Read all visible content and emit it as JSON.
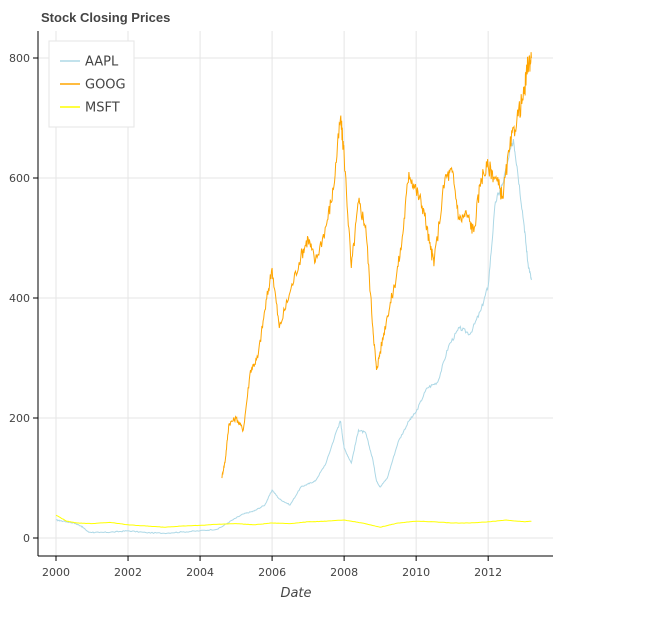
{
  "chart_data": {
    "type": "line",
    "title": "Stock Closing Prices",
    "xlabel": "Date",
    "ylabel": "",
    "x_unit": "year",
    "xlim": [
      1999.5,
      2013.8
    ],
    "ylim": [
      -30,
      845
    ],
    "x_ticks": [
      2000,
      2002,
      2004,
      2006,
      2008,
      2010,
      2012
    ],
    "y_ticks": [
      0,
      200,
      400,
      600,
      800
    ],
    "grid": true,
    "legend_position": "top-left",
    "series": [
      {
        "name": "AAPL",
        "color": "#ADD8E6",
        "x": [
          2000.0,
          2000.2,
          2000.5,
          2000.7,
          2000.9,
          2001.2,
          2001.6,
          2002.0,
          2002.5,
          2003.0,
          2003.5,
          2004.0,
          2004.5,
          2004.9,
          2005.2,
          2005.5,
          2005.8,
          2006.0,
          2006.2,
          2006.5,
          2006.8,
          2007.0,
          2007.2,
          2007.5,
          2007.8,
          2007.9,
          2008.0,
          2008.2,
          2008.4,
          2008.6,
          2008.8,
          2008.9,
          2009.0,
          2009.2,
          2009.5,
          2009.8,
          2010.0,
          2010.3,
          2010.6,
          2010.9,
          2011.2,
          2011.5,
          2011.8,
          2012.0,
          2012.2,
          2012.4,
          2012.7,
          2012.8,
          2013.0,
          2013.1,
          2013.2
        ],
        "y": [
          30,
          28,
          25,
          20,
          10,
          9,
          10,
          12,
          9,
          8,
          10,
          12,
          15,
          30,
          40,
          45,
          55,
          80,
          65,
          55,
          85,
          90,
          95,
          125,
          180,
          195,
          150,
          125,
          180,
          175,
          130,
          95,
          85,
          100,
          160,
          195,
          210,
          250,
          260,
          320,
          350,
          340,
          380,
          420,
          560,
          590,
          665,
          620,
          520,
          460,
          430
        ]
      },
      {
        "name": "GOOG",
        "color": "#FFA500",
        "x": [
          2004.6,
          2004.7,
          2004.8,
          2005.0,
          2005.2,
          2005.4,
          2005.6,
          2005.8,
          2006.0,
          2006.2,
          2006.5,
          2006.8,
          2007.0,
          2007.2,
          2007.5,
          2007.7,
          2007.9,
          2008.0,
          2008.2,
          2008.4,
          2008.6,
          2008.8,
          2008.9,
          2009.0,
          2009.2,
          2009.4,
          2009.6,
          2009.8,
          2010.0,
          2010.2,
          2010.4,
          2010.5,
          2010.8,
          2011.0,
          2011.2,
          2011.4,
          2011.6,
          2011.8,
          2012.0,
          2012.2,
          2012.4,
          2012.6,
          2012.8,
          2013.0,
          2013.1,
          2013.2
        ],
        "y": [
          100,
          130,
          190,
          200,
          180,
          280,
          300,
          380,
          450,
          350,
          410,
          470,
          500,
          460,
          520,
          580,
          700,
          640,
          450,
          560,
          520,
          350,
          280,
          310,
          370,
          420,
          490,
          610,
          580,
          550,
          480,
          460,
          600,
          610,
          530,
          540,
          510,
          600,
          620,
          600,
          570,
          650,
          700,
          740,
          790,
          800
        ]
      },
      {
        "name": "MSFT",
        "color": "#FFFF00",
        "x": [
          2000.0,
          2000.3,
          2000.6,
          2001.0,
          2001.5,
          2002.0,
          2002.5,
          2003.0,
          2003.5,
          2004.0,
          2004.5,
          2005.0,
          2005.5,
          2006.0,
          2006.5,
          2007.0,
          2007.5,
          2008.0,
          2008.5,
          2009.0,
          2009.5,
          2010.0,
          2010.5,
          2011.0,
          2011.5,
          2012.0,
          2012.5,
          2013.0,
          2013.2
        ],
        "y": [
          38,
          28,
          25,
          24,
          26,
          22,
          20,
          18,
          20,
          21,
          23,
          24,
          22,
          25,
          24,
          27,
          28,
          30,
          25,
          18,
          25,
          28,
          27,
          25,
          25,
          27,
          30,
          27,
          28
        ]
      }
    ]
  }
}
